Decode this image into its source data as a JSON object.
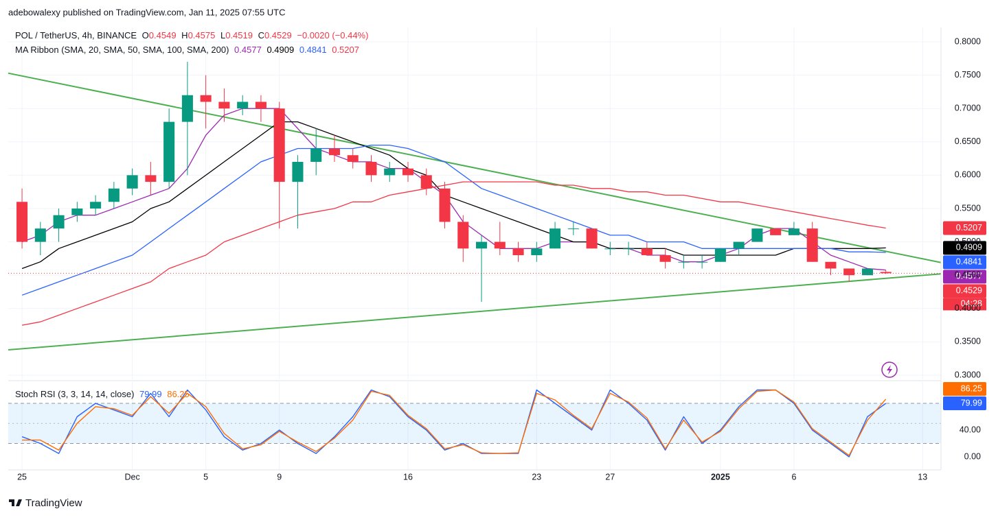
{
  "header": "adebowalexy published on TradingView.com, Jan 11, 2025 07:55 UTC",
  "footer": "TradingView",
  "chart_data": {
    "type": "candlestick",
    "title": "POL / TetherUS, 4h, BINANCE",
    "ohlc_prefixes": [
      "O",
      "H",
      "L",
      "C"
    ],
    "change": "−0.0020 (−0.44%)",
    "countdown": "04:28",
    "open": [
      0.56,
      0.5,
      0.52,
      0.54,
      0.55,
      0.56,
      0.58,
      0.6,
      0.59,
      0.68,
      0.72,
      0.71,
      0.7,
      0.71,
      0.7,
      0.59,
      0.62,
      0.64,
      0.63,
      0.62,
      0.6,
      0.61,
      0.6,
      0.58,
      0.53,
      0.49,
      0.5,
      0.49,
      0.48,
      0.49,
      0.52,
      0.52,
      0.49,
      0.49,
      0.49,
      0.48,
      0.47,
      0.47,
      0.47,
      0.49,
      0.5,
      0.52,
      0.51,
      0.52,
      0.47,
      0.46,
      0.45,
      0.4549
    ],
    "high": [
      0.58,
      0.53,
      0.55,
      0.56,
      0.57,
      0.59,
      0.61,
      0.62,
      0.7,
      0.77,
      0.75,
      0.73,
      0.72,
      0.72,
      0.71,
      0.63,
      0.67,
      0.66,
      0.64,
      0.63,
      0.62,
      0.62,
      0.61,
      0.59,
      0.54,
      0.51,
      0.53,
      0.5,
      0.5,
      0.53,
      0.53,
      0.52,
      0.5,
      0.5,
      0.5,
      0.49,
      0.48,
      0.48,
      0.49,
      0.5,
      0.52,
      0.52,
      0.53,
      0.53,
      0.47,
      0.46,
      0.46,
      0.4575
    ],
    "low": [
      0.49,
      0.48,
      0.5,
      0.53,
      0.54,
      0.55,
      0.57,
      0.57,
      0.58,
      0.6,
      0.67,
      0.68,
      0.69,
      0.68,
      0.52,
      0.52,
      0.6,
      0.62,
      0.61,
      0.59,
      0.59,
      0.59,
      0.57,
      0.52,
      0.47,
      0.41,
      0.48,
      0.47,
      0.47,
      0.49,
      0.51,
      0.49,
      0.48,
      0.48,
      0.48,
      0.46,
      0.46,
      0.46,
      0.47,
      0.48,
      0.5,
      0.51,
      0.51,
      0.47,
      0.45,
      0.44,
      0.45,
      0.4519
    ],
    "close": [
      0.5,
      0.52,
      0.54,
      0.55,
      0.56,
      0.58,
      0.6,
      0.59,
      0.68,
      0.72,
      0.71,
      0.7,
      0.71,
      0.7,
      0.59,
      0.62,
      0.64,
      0.63,
      0.62,
      0.6,
      0.61,
      0.6,
      0.58,
      0.53,
      0.49,
      0.5,
      0.49,
      0.48,
      0.49,
      0.52,
      0.52,
      0.49,
      0.49,
      0.49,
      0.48,
      0.47,
      0.47,
      0.47,
      0.49,
      0.5,
      0.52,
      0.51,
      0.52,
      0.47,
      0.46,
      0.45,
      0.46,
      0.4529
    ],
    "up_color": "#089981",
    "down_color": "#f23645",
    "xlim": [
      -0.75,
      50
    ],
    "xticks": [
      {
        "value": 0,
        "label": "25"
      },
      {
        "value": 6,
        "label": "Dec"
      },
      {
        "value": 10,
        "label": "5"
      },
      {
        "value": 14,
        "label": "9"
      },
      {
        "value": 21,
        "label": "16"
      },
      {
        "value": 28,
        "label": "23"
      },
      {
        "value": 32,
        "label": "27"
      },
      {
        "value": 38,
        "label": "2025"
      },
      {
        "value": 42,
        "label": "6"
      },
      {
        "value": 49,
        "label": "13"
      }
    ],
    "ylim": [
      0.2938,
      0.8216
    ],
    "yticks": [
      {
        "value": 0.3,
        "label": "0.3000"
      },
      {
        "value": 0.35,
        "label": "0.3500"
      },
      {
        "value": 0.4,
        "label": "0.4000"
      },
      {
        "value": 0.45,
        "label": "0.4500"
      },
      {
        "value": 0.5,
        "label": "0.5000"
      },
      {
        "value": 0.55,
        "label": "0.5500"
      },
      {
        "value": 0.6,
        "label": "0.6000"
      },
      {
        "value": 0.65,
        "label": "0.6500"
      },
      {
        "value": 0.7,
        "label": "0.7000"
      },
      {
        "value": 0.75,
        "label": "0.7500"
      },
      {
        "value": 0.8,
        "label": "0.8000"
      }
    ],
    "grid": true,
    "ma_ribbon": {
      "label": "MA Ribbon (SMA, 20, SMA, 50, SMA, 100, SMA, 200)",
      "series": [
        {
          "color": "#9c27b0",
          "values": [
            0.5,
            0.51,
            0.53,
            0.54,
            0.54,
            0.55,
            0.56,
            0.57,
            0.58,
            0.61,
            0.66,
            0.69,
            0.7,
            0.7,
            0.7,
            0.67,
            0.64,
            0.63,
            0.62,
            0.62,
            0.61,
            0.61,
            0.59,
            0.57,
            0.53,
            0.51,
            0.49,
            0.49,
            0.49,
            0.5,
            0.5,
            0.5,
            0.49,
            0.49,
            0.48,
            0.48,
            0.47,
            0.47,
            0.48,
            0.49,
            0.51,
            0.52,
            0.52,
            0.5,
            0.48,
            0.47,
            0.46,
            0.4577
          ]
        },
        {
          "color": "#000000",
          "values": [
            0.46,
            0.47,
            0.49,
            0.5,
            0.51,
            0.52,
            0.53,
            0.55,
            0.56,
            0.58,
            0.6,
            0.62,
            0.64,
            0.66,
            0.68,
            0.68,
            0.67,
            0.66,
            0.65,
            0.64,
            0.63,
            0.61,
            0.6,
            0.57,
            0.56,
            0.55,
            0.54,
            0.53,
            0.52,
            0.51,
            0.5,
            0.5,
            0.49,
            0.49,
            0.49,
            0.49,
            0.48,
            0.48,
            0.48,
            0.48,
            0.48,
            0.48,
            0.49,
            0.49,
            0.49,
            0.49,
            0.49,
            0.4909
          ]
        },
        {
          "color": "#2962ff",
          "values": [
            0.42,
            0.43,
            0.44,
            0.45,
            0.46,
            0.47,
            0.48,
            0.5,
            0.52,
            0.54,
            0.56,
            0.58,
            0.6,
            0.62,
            0.63,
            0.64,
            0.64,
            0.64,
            0.64,
            0.645,
            0.645,
            0.64,
            0.63,
            0.62,
            0.6,
            0.58,
            0.57,
            0.56,
            0.55,
            0.54,
            0.53,
            0.52,
            0.51,
            0.51,
            0.5,
            0.5,
            0.5,
            0.49,
            0.49,
            0.49,
            0.49,
            0.49,
            0.49,
            0.49,
            0.49,
            0.485,
            0.485,
            0.4841
          ]
        },
        {
          "color": "#f23645",
          "values": [
            0.375,
            0.38,
            0.39,
            0.4,
            0.41,
            0.42,
            0.43,
            0.44,
            0.46,
            0.47,
            0.48,
            0.5,
            0.51,
            0.52,
            0.53,
            0.54,
            0.545,
            0.55,
            0.56,
            0.56,
            0.57,
            0.575,
            0.58,
            0.585,
            0.59,
            0.59,
            0.59,
            0.59,
            0.59,
            0.585,
            0.585,
            0.58,
            0.58,
            0.575,
            0.575,
            0.57,
            0.57,
            0.565,
            0.56,
            0.56,
            0.555,
            0.55,
            0.545,
            0.54,
            0.535,
            0.53,
            0.525,
            0.5207
          ]
        }
      ]
    },
    "trendlines": [
      {
        "color": "#4caf50",
        "x": [
          -0.75,
          50
        ],
        "y": [
          0.753,
          0.469
        ]
      },
      {
        "color": "#4caf50",
        "x": [
          -0.75,
          50
        ],
        "y": [
          0.338,
          0.452
        ]
      }
    ],
    "oscillator": {
      "type": "line",
      "label": "Stoch RSI (3, 3, 14, 14, close)",
      "ylim": [
        -19.5,
        111.8
      ],
      "yticks": [
        {
          "value": 0,
          "label": "0.00"
        },
        {
          "value": 40,
          "label": "40.00"
        }
      ],
      "band_levels": [
        20,
        50,
        80
      ],
      "series": [
        {
          "color": "#2962ff",
          "values": [
            30,
            20,
            5,
            60,
            80,
            70,
            60,
            95,
            60,
            100,
            70,
            30,
            10,
            20,
            40,
            20,
            5,
            30,
            60,
            100,
            90,
            60,
            40,
            10,
            20,
            5,
            5,
            5,
            100,
            80,
            60,
            40,
            100,
            80,
            55,
            10,
            60,
            20,
            40,
            75,
            100,
            100,
            80,
            40,
            20,
            0,
            60,
            79.99
          ]
        },
        {
          "color": "#ff6d00",
          "values": [
            25,
            25,
            10,
            50,
            75,
            72,
            62,
            90,
            65,
            95,
            75,
            35,
            12,
            18,
            38,
            22,
            8,
            28,
            55,
            98,
            92,
            62,
            42,
            12,
            18,
            6,
            5,
            6,
            95,
            85,
            62,
            42,
            95,
            82,
            58,
            12,
            55,
            22,
            38,
            72,
            98,
            100,
            82,
            42,
            22,
            2,
            55,
            86.25
          ]
        }
      ]
    }
  }
}
